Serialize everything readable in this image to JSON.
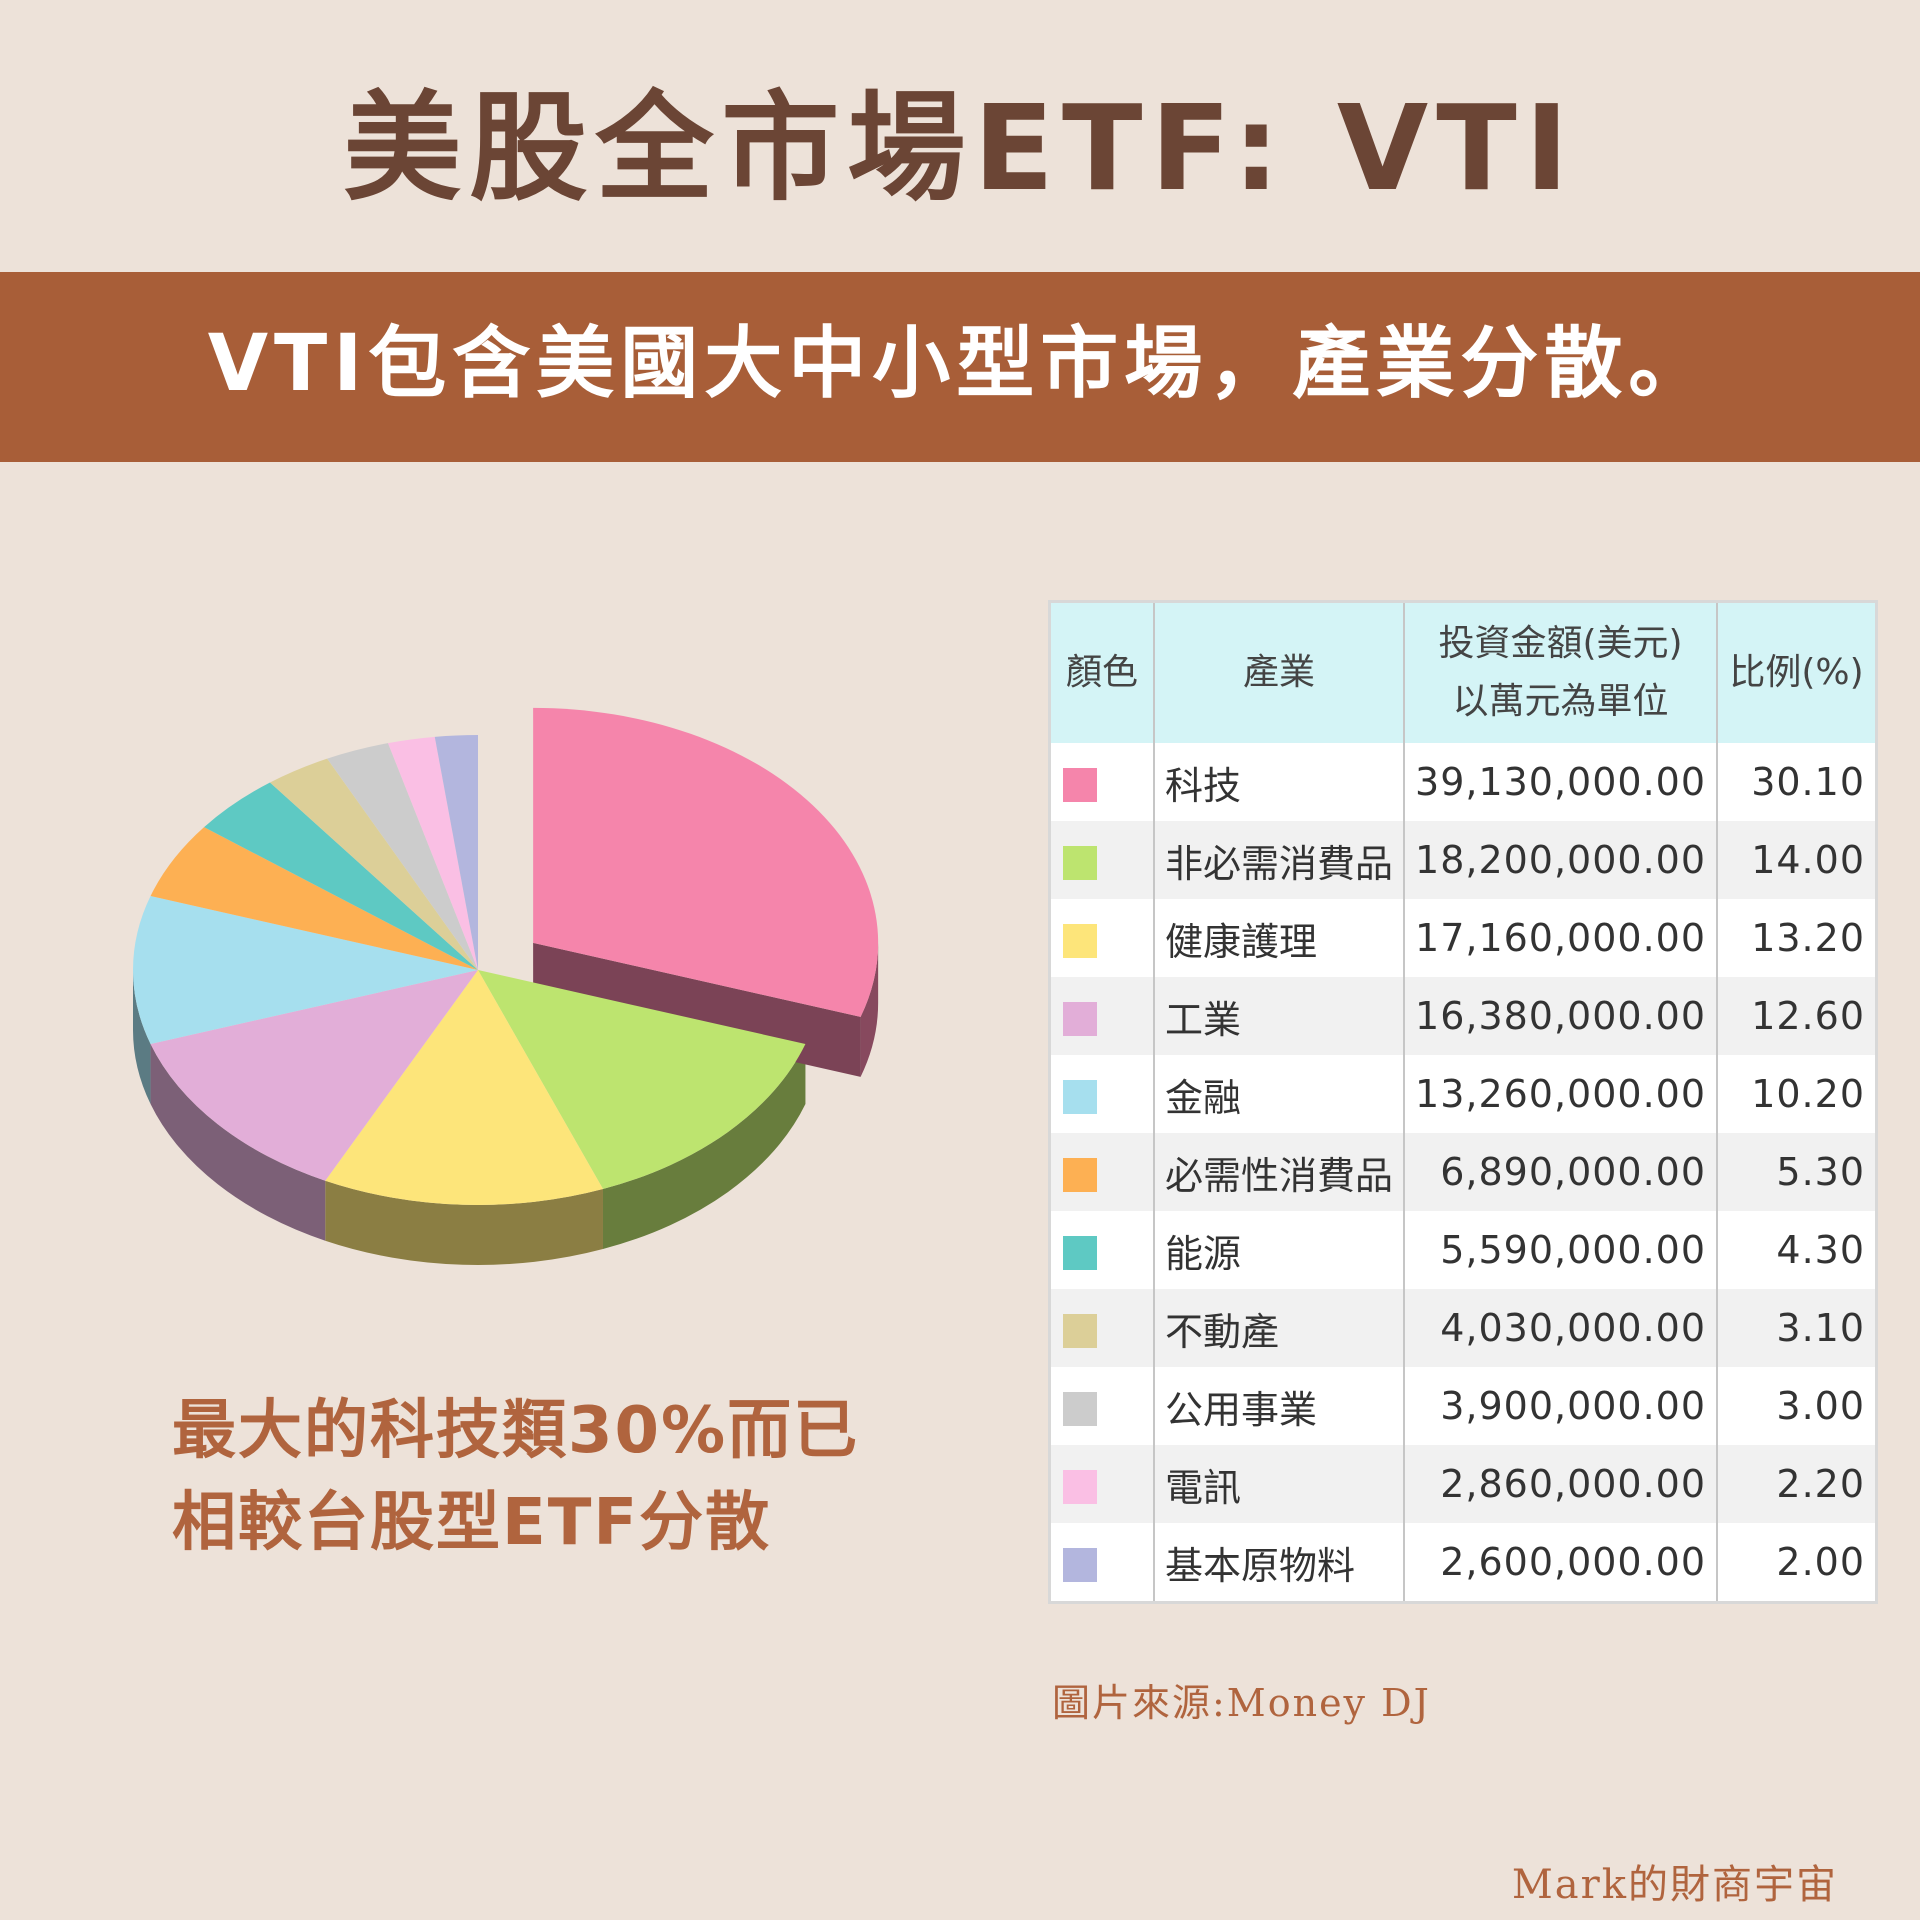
{
  "title": "美股全市場ETF: VTI",
  "banner": "VTI包含美國大中小型市場，產業分散。",
  "note": [
    "最大的科技類30%而已",
    "相較台股型ETF分散"
  ],
  "table": {
    "headers": {
      "color": "顏色",
      "industry": "產業",
      "amount_line1": "投資金額(美元)",
      "amount_line2": "以萬元為單位",
      "ratio": "比例(%)"
    }
  },
  "chart_data": {
    "type": "pie",
    "exploded": "科技",
    "categories": [
      "科技",
      "非必需消費品",
      "健康護理",
      "工業",
      "金融",
      "必需性消費品",
      "能源",
      "不動產",
      "公用事業",
      "電訊",
      "基本原物料"
    ],
    "amounts": [
      "39,130,000.00",
      "18,200,000.00",
      "17,160,000.00",
      "16,380,000.00",
      "13,260,000.00",
      "6,890,000.00",
      "5,590,000.00",
      "4,030,000.00",
      "3,900,000.00",
      "2,860,000.00",
      "2,600,000.00"
    ],
    "values": [
      30.1,
      14.0,
      13.2,
      12.6,
      10.2,
      5.3,
      4.3,
      3.1,
      3.0,
      2.2,
      2.0
    ],
    "value_labels": [
      "30.10",
      "14.00",
      "13.20",
      "12.60",
      "10.20",
      "5.30",
      "4.30",
      "3.10",
      "3.00",
      "2.20",
      "2.00"
    ],
    "colors": [
      "#f585ab",
      "#bde46f",
      "#fde57a",
      "#e2aed8",
      "#a6dfee",
      "#fdb053",
      "#5ec9c3",
      "#dccf98",
      "#cccccc",
      "#fabfe4",
      "#b3b6de"
    ]
  },
  "source": "圖片來源:Money DJ",
  "brand": "Mark的財商宇宙"
}
